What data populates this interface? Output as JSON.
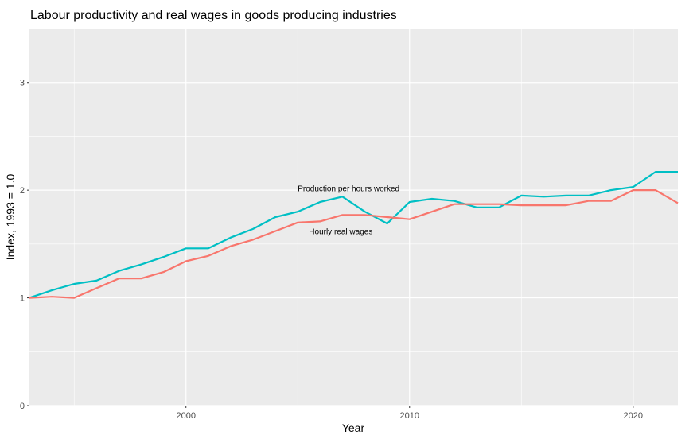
{
  "chart_data": {
    "type": "line",
    "title": "Labour productivity and real wages in goods producing industries",
    "xlabel": "Year",
    "ylabel": "Index, 1993 = 1.0",
    "xlim": [
      1993,
      2022
    ],
    "ylim": [
      0,
      3.5
    ],
    "x_ticks": [
      2000,
      2010,
      2020
    ],
    "y_ticks": [
      0,
      1,
      2,
      3
    ],
    "grid": true,
    "legend": "none",
    "background_color": "#ebebeb",
    "grid_color": "#ffffff",
    "x": [
      1993,
      1994,
      1995,
      1996,
      1997,
      1998,
      1999,
      2000,
      2001,
      2002,
      2003,
      2004,
      2005,
      2006,
      2007,
      2008,
      2009,
      2010,
      2011,
      2012,
      2013,
      2014,
      2015,
      2016,
      2017,
      2018,
      2019,
      2020,
      2021,
      2022
    ],
    "series": [
      {
        "name": "Production per hours worked",
        "color": "#00bfc4",
        "values": [
          1.0,
          1.07,
          1.13,
          1.16,
          1.25,
          1.31,
          1.38,
          1.46,
          1.46,
          1.56,
          1.64,
          1.75,
          1.8,
          1.89,
          1.94,
          1.8,
          1.69,
          1.89,
          1.92,
          1.9,
          1.84,
          1.84,
          1.95,
          1.94,
          1.95,
          1.95,
          2.0,
          2.03,
          2.17,
          2.17
        ]
      },
      {
        "name": "Hourly real wages",
        "color": "#f8766d",
        "values": [
          1.0,
          1.01,
          1.0,
          1.09,
          1.18,
          1.18,
          1.24,
          1.34,
          1.39,
          1.48,
          1.54,
          1.62,
          1.7,
          1.71,
          1.77,
          1.77,
          1.75,
          1.73,
          1.8,
          1.87,
          1.87,
          1.87,
          1.86,
          1.86,
          1.86,
          1.9,
          1.9,
          2.0,
          2.0,
          1.88
        ]
      }
    ],
    "annotations": [
      {
        "text": "Production per hours worked",
        "x": 2005.0,
        "y": 1.99
      },
      {
        "text": "Hourly real wages",
        "x": 2005.5,
        "y": 1.59
      }
    ]
  }
}
